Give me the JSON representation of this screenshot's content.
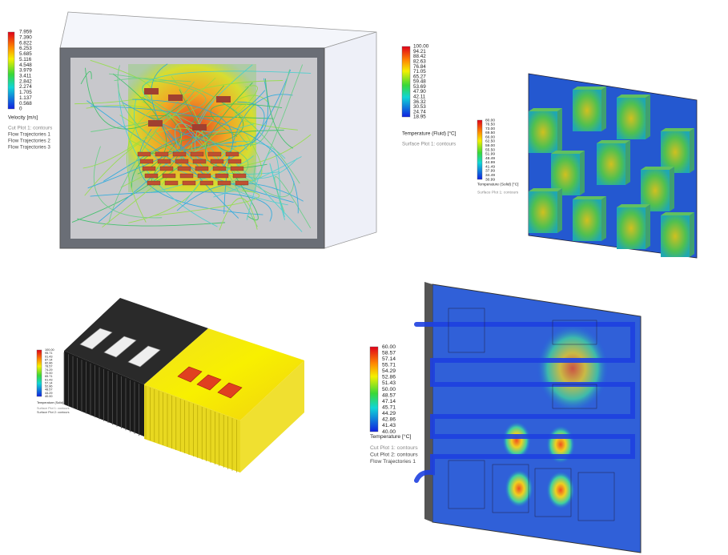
{
  "panels": [
    {
      "legend": {
        "values": [
          "7.959",
          "7.390",
          "6.822",
          "6.253",
          "5.685",
          "5.116",
          "4.548",
          "3.979",
          "3.411",
          "2.842",
          "2.274",
          "1.705",
          "1.137",
          "0.568",
          "0"
        ],
        "title": "Velocity [m/s]",
        "items": [
          "Cut Plot 1: contours",
          "Flow Trajectories 1",
          "Flow Trajectories 2",
          "Flow Trajectories 3"
        ]
      }
    },
    {
      "legend": {
        "values": [
          "100.00",
          "94.21",
          "88.42",
          "82.63",
          "76.84",
          "71.05",
          "65.27",
          "59.48",
          "53.69",
          "47.90",
          "42.11",
          "36.32",
          "30.53",
          "24.74",
          "18.95"
        ],
        "title": "Temperature (Fluid) [°C]",
        "items": [
          "Surface Plot 1: contours"
        ]
      }
    },
    {
      "legend": {
        "values": [
          "80.00",
          "76.50",
          "73.00",
          "69.50",
          "66.00",
          "62.50",
          "59.00",
          "55.50",
          "51.99",
          "48.49",
          "44.99",
          "41.49",
          "37.99",
          "34.49",
          "30.99"
        ],
        "title": "Temperature (Solid) [°C]",
        "items": [
          "Surface Plot 1: contours"
        ]
      }
    },
    {
      "legend": {
        "values": [
          "100.00",
          "95.71",
          "91.43",
          "87.14",
          "82.86",
          "78.57",
          "74.29",
          "70.00",
          "65.71",
          "61.43",
          "57.14",
          "52.86",
          "48.57",
          "44.29",
          "40.00"
        ],
        "title": "Temperature (Solid) [°C]",
        "items": [
          "Surface Plot 1: contours",
          "Surface Plot 2: contours"
        ]
      }
    },
    {
      "legend": {
        "values": [
          "60.00",
          "58.57",
          "57.14",
          "55.71",
          "54.29",
          "52.86",
          "51.43",
          "50.00",
          "48.57",
          "47.14",
          "45.71",
          "44.29",
          "42.86",
          "41.43",
          "40.00"
        ],
        "title": "Temperature [°C]",
        "items": [
          "Cut Plot 1: contours",
          "Cut Plot 2: contours",
          "Flow Trajectories 1"
        ]
      }
    }
  ]
}
